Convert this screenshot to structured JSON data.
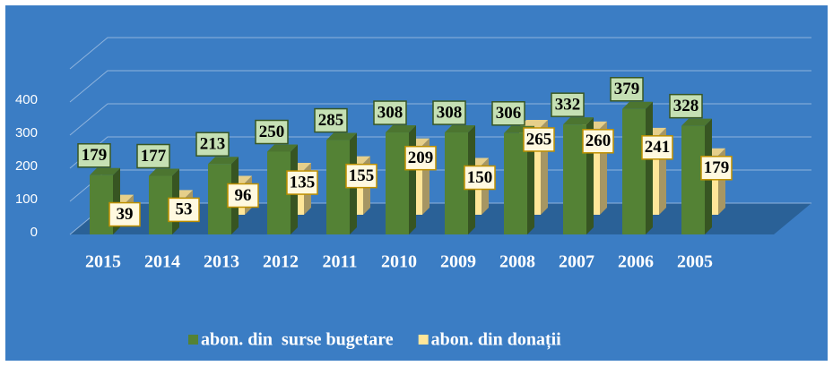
{
  "chart_data": {
    "type": "bar3d",
    "categories": [
      "2015",
      "2014",
      "2013",
      "2012",
      "2011",
      "2010",
      "2009",
      "2008",
      "2007",
      "2006",
      "2005"
    ],
    "series": [
      {
        "name": "abon. din  surse bugetare",
        "color": "#548235",
        "values": [
          179,
          177,
          213,
          250,
          285,
          308,
          308,
          306,
          332,
          379,
          328
        ]
      },
      {
        "name": "abon. din donații",
        "color": "#ffe699",
        "values": [
          39,
          53,
          96,
          135,
          155,
          209,
          150,
          265,
          260,
          241,
          179
        ]
      }
    ],
    "ylim": [
      0,
      500
    ],
    "yticks": [
      0,
      100,
      200,
      300,
      400
    ],
    "grid": true,
    "legend": "bottom"
  }
}
